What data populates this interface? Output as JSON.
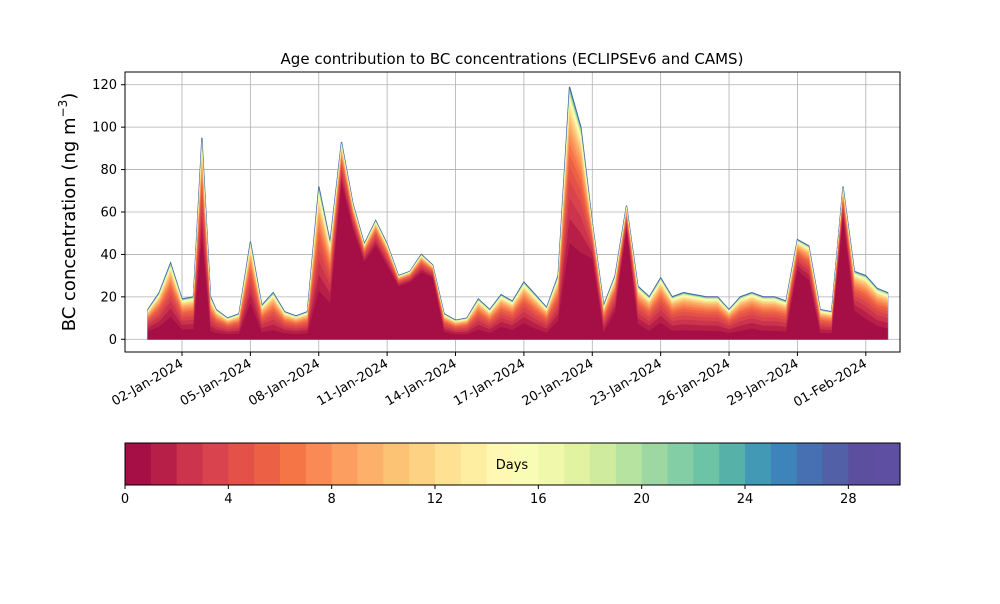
{
  "chart_data": {
    "type": "area",
    "title": "Age contribution to BC concentrations (ECLIPSEv6 and CAMS)",
    "ylabel_main": "BC concentration (ng m",
    "ylabel_sup": "−3",
    "ylabel_close": ")",
    "xlabel": "",
    "ylim": [
      -6,
      126
    ],
    "y_ticks": [
      0,
      20,
      40,
      60,
      80,
      100,
      120
    ],
    "xlim": [
      "2023-12-30T12:00",
      "2024-02-02T12:00"
    ],
    "x_ticks": [
      "2024-01-02",
      "2024-01-05",
      "2024-01-08",
      "2024-01-11",
      "2024-01-14",
      "2024-01-17",
      "2024-01-20",
      "2024-01-23",
      "2024-01-26",
      "2024-01-29",
      "2024-02-01"
    ],
    "x_tick_labels": [
      "02-Jan-2024",
      "05-Jan-2024",
      "08-Jan-2024",
      "11-Jan-2024",
      "14-Jan-2024",
      "17-Jan-2024",
      "20-Jan-2024",
      "23-Jan-2024",
      "26-Jan-2024",
      "29-Jan-2024",
      "01-Feb-2024"
    ],
    "grid": true,
    "colorbar": {
      "label": "Days",
      "min": 0,
      "max": 30,
      "ticks": [
        0,
        4,
        8,
        12,
        16,
        20,
        24,
        28
      ],
      "colors": [
        "#a50f45",
        "#b81f48",
        "#cc334c",
        "#d9434d",
        "#e35148",
        "#ec6046",
        "#f57547",
        "#f98a55",
        "#fc9e5f",
        "#fdb06a",
        "#fdc374",
        "#fdd282",
        "#fee192",
        "#feeea1",
        "#fff8b2",
        "#f9fcb5",
        "#eff8ab",
        "#e1f3a1",
        "#cfec9e",
        "#b7e3a0",
        "#9dd8a3",
        "#84cea5",
        "#6cc3a5",
        "#56b1a9",
        "#4299b5",
        "#3d84bb",
        "#4670b2",
        "#5260a8",
        "#5d4fa0",
        "#5e4fa2"
      ]
    },
    "series": [
      {
        "x": [
          "2023-12-31T12:00",
          "2024-01-01T00:00",
          "2024-01-01T12:00",
          "2024-01-02T00:00",
          "2024-01-02T12:00",
          "2024-01-02T21:00",
          "2024-01-03T06:00",
          "2024-01-03T12:00",
          "2024-01-04T00:00",
          "2024-01-04T12:00",
          "2024-01-05T00:00",
          "2024-01-05T12:00",
          "2024-01-06T00:00",
          "2024-01-06T12:00",
          "2024-01-07T00:00",
          "2024-01-07T12:00",
          "2024-01-08T00:00",
          "2024-01-08T12:00",
          "2024-01-09T00:00",
          "2024-01-09T12:00",
          "2024-01-10T00:00",
          "2024-01-10T12:00",
          "2024-01-11T00:00",
          "2024-01-11T12:00",
          "2024-01-12T00:00",
          "2024-01-12T12:00",
          "2024-01-13T00:00",
          "2024-01-13T12:00",
          "2024-01-14T00:00",
          "2024-01-14T12:00",
          "2024-01-15T00:00",
          "2024-01-15T12:00",
          "2024-01-16T00:00",
          "2024-01-16T12:00",
          "2024-01-17T00:00",
          "2024-01-17T12:00",
          "2024-01-18T00:00",
          "2024-01-18T12:00",
          "2024-01-19T00:00",
          "2024-01-19T12:00",
          "2024-01-20T00:00",
          "2024-01-20T12:00",
          "2024-01-21T00:00",
          "2024-01-21T12:00",
          "2024-01-22T00:00",
          "2024-01-22T12:00",
          "2024-01-23T00:00",
          "2024-01-23T12:00",
          "2024-01-24T00:00",
          "2024-01-24T12:00",
          "2024-01-25T00:00",
          "2024-01-25T12:00",
          "2024-01-26T00:00",
          "2024-01-26T12:00",
          "2024-01-27T00:00",
          "2024-01-27T12:00",
          "2024-01-28T00:00",
          "2024-01-28T12:00",
          "2024-01-29T00:00",
          "2024-01-29T12:00",
          "2024-01-30T00:00",
          "2024-01-30T12:00",
          "2024-01-31T00:00",
          "2024-01-31T12:00",
          "2024-02-01T00:00",
          "2024-02-01T12:00",
          "2024-02-01T23:00"
        ],
        "total": [
          14,
          22,
          36,
          19,
          20,
          95,
          20,
          14,
          10,
          12,
          46,
          16,
          22,
          13,
          11,
          13,
          72,
          46,
          93,
          64,
          45,
          56,
          45,
          30,
          32,
          40,
          35,
          12,
          9,
          10,
          19,
          14,
          21,
          18,
          27,
          21,
          15,
          30,
          119,
          100,
          55,
          16,
          30,
          63,
          25,
          20,
          29,
          20,
          22,
          21,
          20,
          20,
          14,
          20,
          22,
          20,
          20,
          18,
          47,
          44,
          14,
          13,
          72,
          32,
          30,
          24,
          22
        ],
        "fresh": [
          2,
          3,
          6,
          2,
          2,
          40,
          1,
          1,
          1,
          1,
          12,
          1,
          1,
          1,
          1,
          1,
          14,
          12,
          70,
          50,
          35,
          42,
          33,
          24,
          26,
          30,
          28,
          2,
          1,
          1,
          2,
          1,
          3,
          2,
          4,
          2,
          1,
          5,
          32,
          30,
          35,
          1,
          10,
          50,
          4,
          1,
          4,
          1,
          1,
          1,
          1,
          1,
          1,
          1,
          2,
          1,
          1,
          1,
          30,
          25,
          1,
          1,
          55,
          10,
          6,
          3,
          2
        ]
      }
    ]
  }
}
